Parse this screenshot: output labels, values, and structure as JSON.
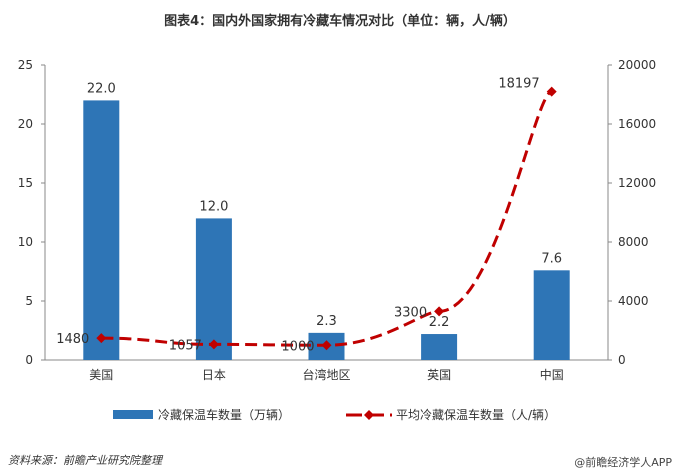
{
  "chart_data": {
    "type": "bar+line",
    "title": "图表4：国内外国家拥有冷藏车情况对比（单位：辆，人/辆）",
    "categories": [
      "美国",
      "日本",
      "台湾地区",
      "英国",
      "中国"
    ],
    "series": [
      {
        "name": "冷藏保温车数量（万辆）",
        "type": "bar",
        "axis": "left",
        "color": "#2e75b6",
        "values": [
          22.0,
          12.0,
          2.3,
          2.2,
          7.6
        ],
        "labels": [
          "22.0",
          "12.0",
          "2.3",
          "2.2",
          "7.6"
        ]
      },
      {
        "name": "平均冷藏保温车数量（人/辆）",
        "type": "line",
        "axis": "right",
        "color": "#c00000",
        "values": [
          1480,
          1057,
          1000,
          3300,
          18197
        ],
        "labels": [
          "1480",
          "1057",
          "1000",
          "3300",
          "18197"
        ]
      }
    ],
    "left_axis": {
      "ylim": [
        0,
        25
      ],
      "ticks": [
        "0",
        "5",
        "10",
        "15",
        "20",
        "25"
      ]
    },
    "right_axis": {
      "ylim": [
        0,
        20000
      ],
      "ticks": [
        "0",
        "4000",
        "8000",
        "12000",
        "16000",
        "20000"
      ]
    },
    "legend": "bottom"
  },
  "source": "资料来源：前瞻产业研究院整理",
  "watermark": "@前瞻经济学人APP"
}
